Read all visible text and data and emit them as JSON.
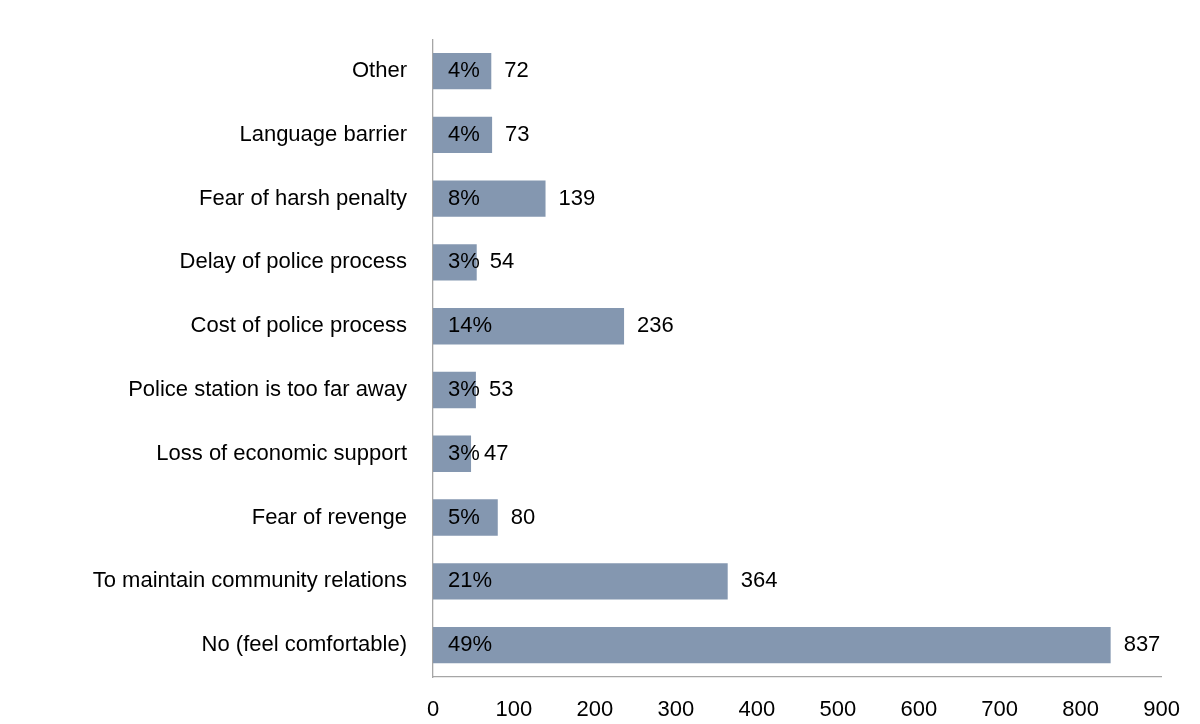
{
  "chart_data": {
    "type": "bar",
    "orientation": "horizontal",
    "categories": [
      "Other",
      "Language barrier",
      "Fear of harsh penalty",
      "Delay of police process",
      "Cost of police process",
      "Police station is too far away",
      "Loss of economic support",
      "Fear of revenge",
      "To maintain community relations",
      "No (feel comfortable)"
    ],
    "values": [
      72,
      73,
      139,
      54,
      236,
      53,
      47,
      80,
      364,
      837
    ],
    "data_labels": true,
    "annotations": [
      "4%",
      "4%",
      "8%",
      "3%",
      "14%",
      "3%",
      "3%",
      "5%",
      "21%",
      "49%"
    ],
    "color": "#8497b0",
    "xlim": [
      0,
      900
    ],
    "xticks": [
      0,
      100,
      200,
      300,
      400,
      500,
      600,
      700,
      800,
      900
    ],
    "grid": false,
    "legend": false
  }
}
